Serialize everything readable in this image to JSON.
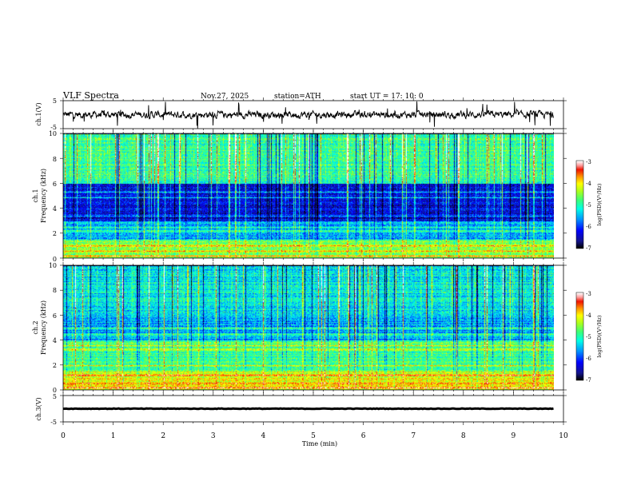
{
  "header": {
    "title": "VLF  Spectra",
    "date": "Nov.27, 2025",
    "station": "station=ATH",
    "start": "start  UT  =    17: 10: 0"
  },
  "colors": {
    "background": "#ffffff",
    "trace": "#000000",
    "colormap": [
      "#000000",
      "#1a1aa0",
      "#0000ff",
      "#00a0ff",
      "#00ffe0",
      "#40ff80",
      "#a0ff20",
      "#ffff00",
      "#ffa000",
      "#ff2000",
      "#e00000",
      "#ffc0c0",
      "#ffffff"
    ]
  },
  "chart_data": [
    {
      "type": "line",
      "name": "ch1-trace",
      "ylabel": "ch.1(V)",
      "ylim": [
        -5,
        5
      ],
      "y_ticks": [
        "5",
        "-5"
      ],
      "xlim": [
        0,
        10
      ],
      "baseline": 0,
      "noise_range": [
        -1.5,
        1.5
      ],
      "spikes_range": [
        -5,
        5
      ],
      "grid": false
    },
    {
      "type": "heatmap",
      "name": "ch1-spectrogram",
      "ylabel": "Frequency  (kHz)",
      "channel_label": "ch.1",
      "ylim": [
        0,
        10
      ],
      "y_ticks": [
        "0",
        "2",
        "4",
        "6",
        "8",
        "10"
      ],
      "xlim": [
        0,
        10
      ],
      "colorbar": {
        "label": "log(PSD)(V²/Hz)",
        "range": [
          -7,
          -3
        ],
        "ticks": [
          "-3",
          "-4",
          "-5",
          "-6",
          "-7"
        ]
      },
      "bands": [
        {
          "freq_range": [
            0,
            1.5
          ],
          "level": -4.6
        },
        {
          "freq_range": [
            1.5,
            3
          ],
          "level": -5.6
        },
        {
          "freq_range": [
            3,
            6
          ],
          "level": -6.4
        },
        {
          "freq_range": [
            6,
            10
          ],
          "level": -5.0
        }
      ],
      "lines_khz": [
        0.2,
        0.6,
        1.0,
        2.2,
        2.5,
        3.4,
        4.9,
        5.3
      ]
    },
    {
      "type": "heatmap",
      "name": "ch2-spectrogram",
      "ylabel": "Frequency  (kHz)",
      "channel_label": "ch.2",
      "ylim": [
        0,
        10
      ],
      "y_ticks": [
        "0",
        "2",
        "4",
        "6",
        "8",
        "10"
      ],
      "xlim": [
        0,
        10
      ],
      "colorbar": {
        "label": "log(PSD)(V²/Hz)",
        "range": [
          -7,
          -3
        ],
        "ticks": [
          "-3",
          "-4",
          "-5",
          "-6",
          "-7"
        ]
      },
      "bands": [
        {
          "freq_range": [
            0,
            1.5
          ],
          "level": -4.2
        },
        {
          "freq_range": [
            1.5,
            4
          ],
          "level": -4.9
        },
        {
          "freq_range": [
            4,
            6
          ],
          "level": -5.6
        },
        {
          "freq_range": [
            6,
            10
          ],
          "level": -5.3
        }
      ],
      "lines_khz": [
        0.2,
        0.6,
        1.2,
        2.0,
        3.3,
        3.6,
        4.5,
        5.0
      ]
    },
    {
      "type": "line",
      "name": "ch3-trace",
      "ylabel": "ch.3(V)",
      "ylim": [
        -5,
        5
      ],
      "y_ticks": [
        "5",
        "-5"
      ],
      "xlim": [
        0,
        10
      ],
      "baseline": 0,
      "noise_range": [
        -0.3,
        0.3
      ],
      "grid": false
    }
  ],
  "x_axis": {
    "label": "Time  (min)",
    "ticks": [
      "0",
      "1",
      "2",
      "3",
      "4",
      "5",
      "6",
      "7",
      "8",
      "9",
      "10"
    ],
    "data_end": 9.8
  }
}
